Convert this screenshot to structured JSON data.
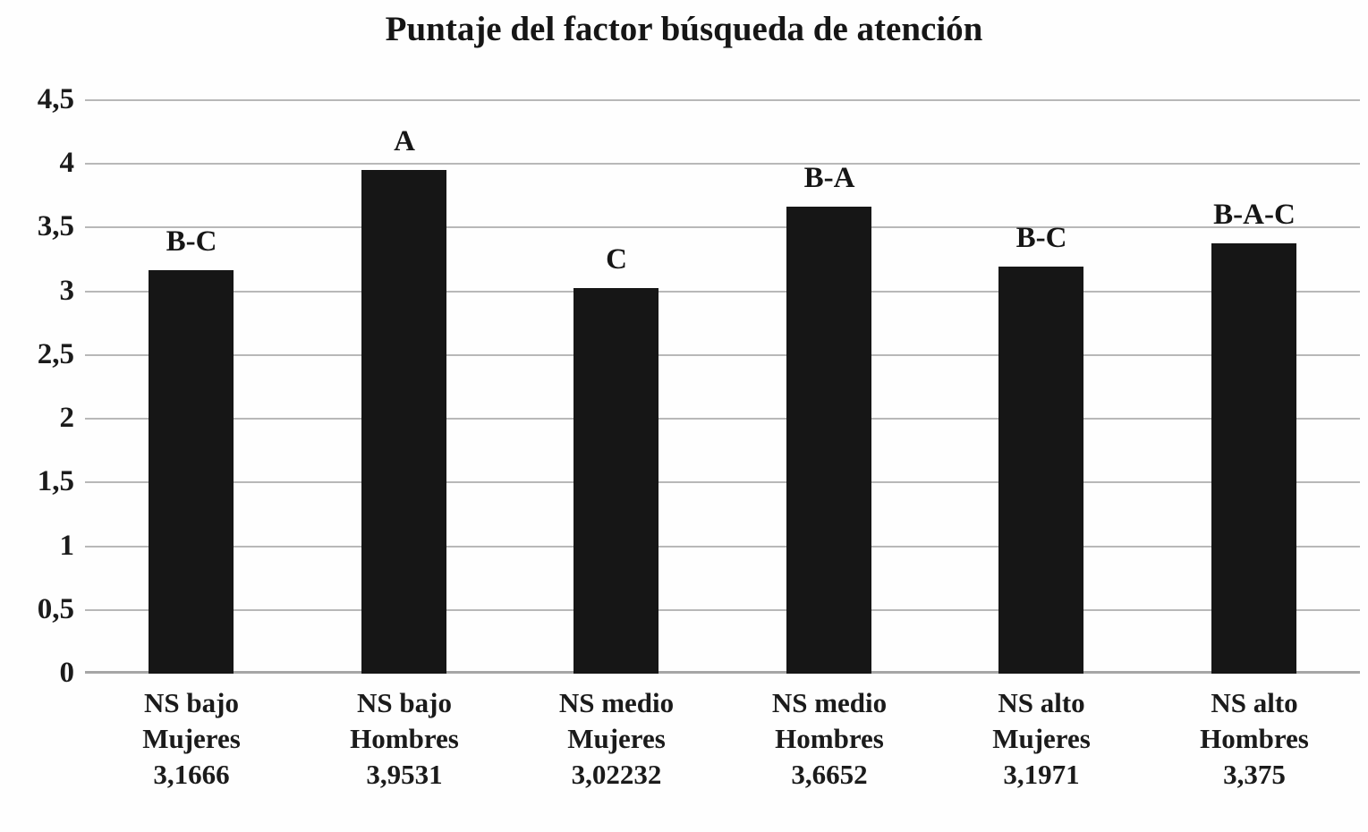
{
  "chart_data": {
    "type": "bar",
    "title": "Puntaje del factor búsqueda de atención",
    "xlabel": "",
    "ylabel": "",
    "legend": "none",
    "grid": "horizontal",
    "y_axis": {
      "min": 0,
      "max": 4.5,
      "tick_values": [
        4.5,
        4,
        3.5,
        3,
        2.5,
        2,
        1.5,
        1,
        0.5,
        0
      ],
      "tick_labels": [
        "4,5",
        "4",
        "3,5",
        "3",
        "2,5",
        "2",
        "1,5",
        "1",
        "0,5",
        "0"
      ]
    },
    "bars": [
      {
        "group": "NS bajo",
        "sex": "Mujeres",
        "value": 3.1666,
        "value_label": "3,1666",
        "annotation": "B-C"
      },
      {
        "group": "NS bajo",
        "sex": "Hombres",
        "value": 3.9531,
        "value_label": "3,9531",
        "annotation": "A"
      },
      {
        "group": "NS medio",
        "sex": "Mujeres",
        "value": 3.02232,
        "value_label": "3,02232",
        "annotation": "C"
      },
      {
        "group": "NS medio",
        "sex": "Hombres",
        "value": 3.6652,
        "value_label": "3,6652",
        "annotation": "B-A"
      },
      {
        "group": "NS alto",
        "sex": "Mujeres",
        "value": 3.1971,
        "value_label": "3,1971",
        "annotation": "B-C"
      },
      {
        "group": "NS alto",
        "sex": "Hombres",
        "value": 3.375,
        "value_label": "3,375",
        "annotation": "B-A-C"
      }
    ],
    "colors": {
      "bar": "#161616",
      "gridline": "#b8b8b8",
      "baseline": "#a6a6a6",
      "text": "#1b1b1b",
      "background": "#fefefe"
    }
  }
}
